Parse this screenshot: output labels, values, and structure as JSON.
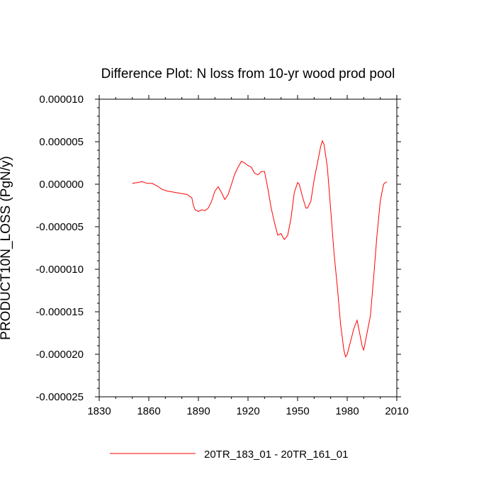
{
  "chart_data": {
    "type": "line",
    "title": "Difference Plot: N loss from 10-yr wood prod pool",
    "xlabel": "",
    "ylabel": "PRODUCT10N_LOSS  (PgN/y)",
    "xlim": [
      1830,
      2010
    ],
    "ylim": [
      -2.5e-05,
      1e-05
    ],
    "xticks": [
      1830,
      1860,
      1890,
      1920,
      1950,
      1980,
      2010
    ],
    "xtick_labels": [
      "1830",
      "1860",
      "1890",
      "1920",
      "1950",
      "1980",
      "2010"
    ],
    "yticks": [
      1e-05,
      5e-06,
      0,
      -5e-06,
      -1e-05,
      -1.5e-05,
      -2e-05,
      -2.5e-05
    ],
    "ytick_labels": [
      "0.000010",
      "0.000005",
      "0.000000",
      "-0.000005",
      "-0.000010",
      "-0.000015",
      "-0.000020",
      "-0.000025"
    ],
    "grid": false,
    "legend_position": "bottom",
    "series": [
      {
        "name": "20TR_183_01 - 20TR_161_01",
        "color": "#ff0000",
        "x": [
          1850,
          1853,
          1856,
          1859,
          1862,
          1865,
          1868,
          1871,
          1874,
          1877,
          1880,
          1883,
          1886,
          1887,
          1888,
          1890,
          1892,
          1894,
          1896,
          1898,
          1900,
          1902,
          1904,
          1906,
          1908,
          1910,
          1912,
          1914,
          1916,
          1918,
          1920,
          1922,
          1924,
          1926,
          1928,
          1930,
          1932,
          1934,
          1936,
          1938,
          1940,
          1941,
          1942,
          1944,
          1946,
          1948,
          1950,
          1951,
          1953,
          1955,
          1956,
          1958,
          1960,
          1962,
          1964,
          1965,
          1966,
          1968,
          1970,
          1972,
          1974,
          1976,
          1978,
          1979,
          1980,
          1982,
          1984,
          1986,
          1988,
          1989,
          1990,
          1992,
          1994,
          1996,
          1998,
          2000,
          2002,
          2003,
          2004
        ],
        "y": [
          1e-07,
          2e-07,
          3e-07,
          1e-07,
          1e-07,
          -2e-07,
          -6e-07,
          -8e-07,
          -9e-07,
          -1e-06,
          -1.1e-06,
          -1.2e-06,
          -1.6e-06,
          -2.5e-06,
          -3e-06,
          -3.2e-06,
          -3e-06,
          -3.1e-06,
          -2.8e-06,
          -2e-06,
          -8e-07,
          -3e-07,
          -1e-06,
          -1.8e-06,
          -1.2e-06,
          0.0,
          1.2e-06,
          2e-06,
          2.7e-06,
          2.5e-06,
          2.2e-06,
          2e-06,
          1.3e-06,
          1.1e-06,
          1.5e-06,
          1.5e-06,
          -5e-07,
          -2.8e-06,
          -4.5e-06,
          -6e-06,
          -5.8e-06,
          -6.2e-06,
          -6.5e-06,
          -6e-06,
          -4e-06,
          -1e-06,
          2e-07,
          0.0,
          -1.5e-06,
          -2.8e-06,
          -2.8e-06,
          -2e-06,
          5e-07,
          2.5e-06,
          4.5e-06,
          5.1e-06,
          4.7e-06,
          2e-06,
          -3e-06,
          -8e-06,
          -1.2e-05,
          -1.65e-05,
          -1.95e-05,
          -2.03e-05,
          -2e-05,
          -1.85e-05,
          -1.7e-05,
          -1.6e-05,
          -1.8e-05,
          -1.9e-05,
          -1.95e-05,
          -1.75e-05,
          -1.55e-05,
          -1.1e-05,
          -6e-06,
          -2e-06,
          0.0,
          2e-07,
          3e-07
        ]
      }
    ]
  }
}
